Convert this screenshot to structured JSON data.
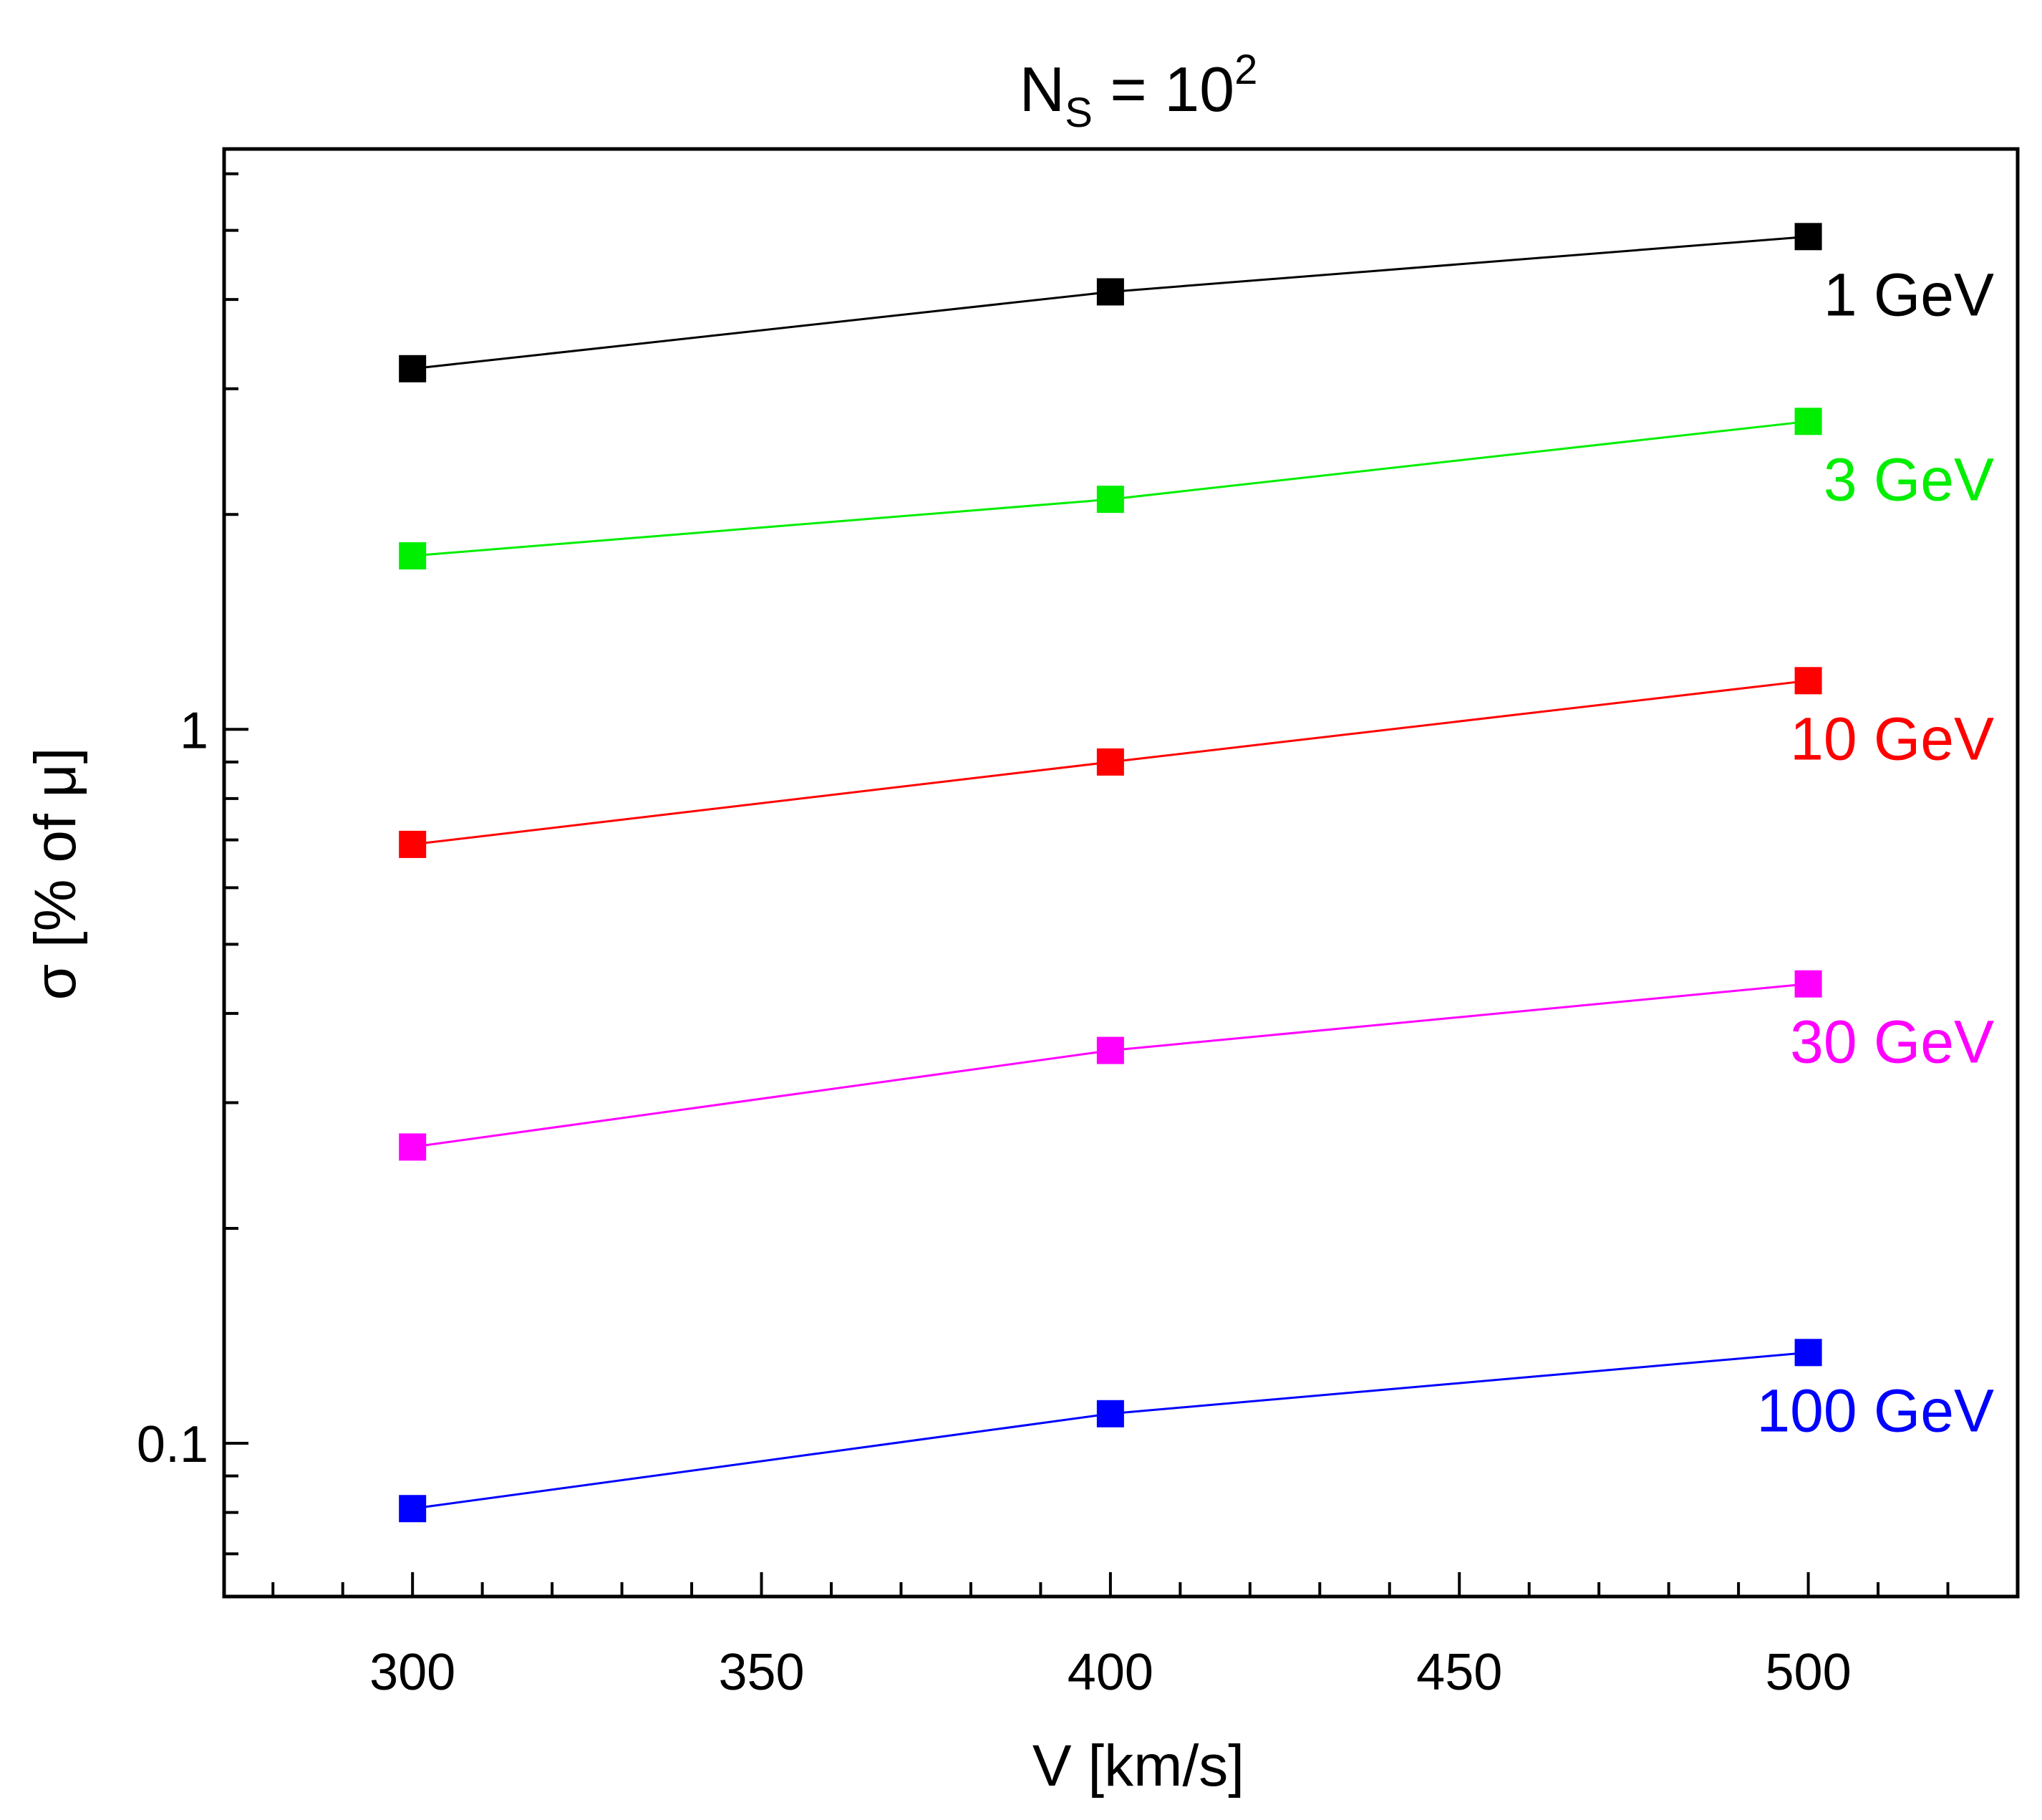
{
  "chart_data": {
    "type": "scatter",
    "title": {
      "base": "N",
      "subscript": "S",
      "middle": " = 10",
      "superscript": "2"
    },
    "xlabel": "V [km/s]",
    "ylabel": "σ [% of μ]",
    "y_scale": "log",
    "xlim": [
      273,
      530
    ],
    "ylim": [
      0.061,
      6.5
    ],
    "x_ticks": [
      {
        "value": 300,
        "label": "300"
      },
      {
        "value": 350,
        "label": "350"
      },
      {
        "value": 400,
        "label": "400"
      },
      {
        "value": 450,
        "label": "450"
      },
      {
        "value": 500,
        "label": "500"
      }
    ],
    "y_ticks": [
      {
        "value": 0.1,
        "label": "0.1"
      },
      {
        "value": 1,
        "label": "1"
      }
    ],
    "x": [
      300,
      400,
      500
    ],
    "series": [
      {
        "name": "1 GeV",
        "color": "#000000",
        "values": [
          3.2,
          4.1,
          4.9
        ]
      },
      {
        "name": "3 GeV",
        "color": "#00ee00",
        "values": [
          1.75,
          2.1,
          2.7
        ]
      },
      {
        "name": "10 GeV",
        "color": "#ff0000",
        "values": [
          0.69,
          0.9,
          1.17
        ]
      },
      {
        "name": "30 GeV",
        "color": "#ff00ff",
        "values": [
          0.26,
          0.355,
          0.44
        ]
      },
      {
        "name": "100 GeV",
        "color": "#0000ff",
        "values": [
          0.081,
          0.11,
          0.134
        ]
      }
    ]
  }
}
